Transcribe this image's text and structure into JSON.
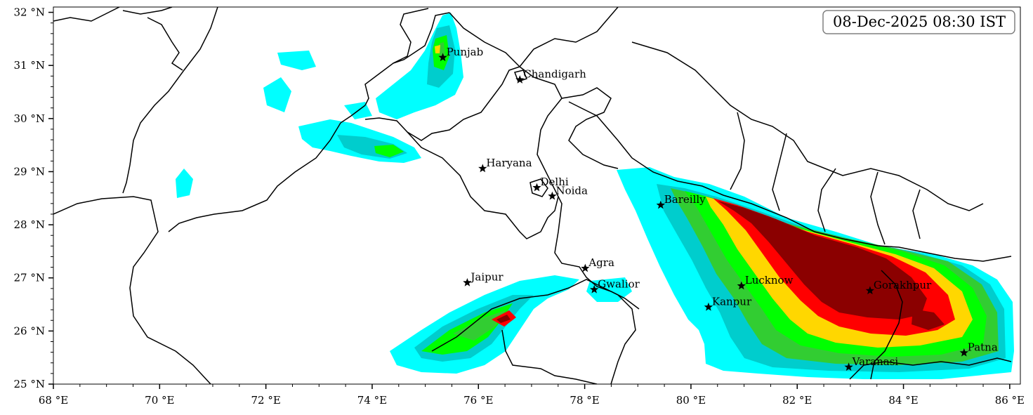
{
  "map": {
    "timestamp": "08-Dec-2025 08:30 IST",
    "lon_range": [
      68,
      86.2
    ],
    "lat_range": [
      25,
      32.1
    ],
    "x_ticks": [
      {
        "lon": 68,
        "label": "68 °E"
      },
      {
        "lon": 70,
        "label": "70 °E"
      },
      {
        "lon": 72,
        "label": "72 °E"
      },
      {
        "lon": 74,
        "label": "74 °E"
      },
      {
        "lon": 76,
        "label": "76 °E"
      },
      {
        "lon": 78,
        "label": "78 °E"
      },
      {
        "lon": 80,
        "label": "80 °E"
      },
      {
        "lon": 82,
        "label": "82 °E"
      },
      {
        "lon": 84,
        "label": "84 °E"
      },
      {
        "lon": 86,
        "label": "86 °E"
      }
    ],
    "y_ticks": [
      {
        "lat": 25,
        "label": "25 °N"
      },
      {
        "lat": 26,
        "label": "26 °N"
      },
      {
        "lat": 27,
        "label": "27 °N"
      },
      {
        "lat": 28,
        "label": "28 °N"
      },
      {
        "lat": 29,
        "label": "29 °N"
      },
      {
        "lat": 30,
        "label": "30 °N"
      },
      {
        "lat": 31,
        "label": "31 °N"
      },
      {
        "lat": 32,
        "label": "32 °N"
      }
    ],
    "cities": [
      {
        "name": "Punjab",
        "lon": 75.33,
        "lat": 31.15
      },
      {
        "name": "Chandigarh",
        "lon": 76.78,
        "lat": 30.73
      },
      {
        "name": "Haryana",
        "lon": 76.08,
        "lat": 29.06
      },
      {
        "name": "Delhi",
        "lon": 77.1,
        "lat": 28.7
      },
      {
        "name": "Noida",
        "lon": 77.39,
        "lat": 28.54
      },
      {
        "name": "Bareilly",
        "lon": 79.43,
        "lat": 28.37
      },
      {
        "name": "Jaipur",
        "lon": 75.79,
        "lat": 26.91
      },
      {
        "name": "Agra",
        "lon": 78.01,
        "lat": 27.18
      },
      {
        "name": "Gwalior",
        "lon": 78.18,
        "lat": 26.78
      },
      {
        "name": "Lucknow",
        "lon": 80.95,
        "lat": 26.85
      },
      {
        "name": "Kanpur",
        "lon": 80.33,
        "lat": 26.45
      },
      {
        "name": "Gorakhpur",
        "lon": 83.37,
        "lat": 26.76
      },
      {
        "name": "Varanasi",
        "lon": 82.97,
        "lat": 25.32
      },
      {
        "name": "Patna",
        "lon": 85.14,
        "lat": 25.59
      }
    ],
    "colors": {
      "level1": "#00ffff",
      "level2": "#00cdcd",
      "level3": "#32cd32",
      "level4": "#00ff00",
      "level5": "#ffd700",
      "level6": "#ff0000",
      "level7": "#8b0000"
    }
  }
}
